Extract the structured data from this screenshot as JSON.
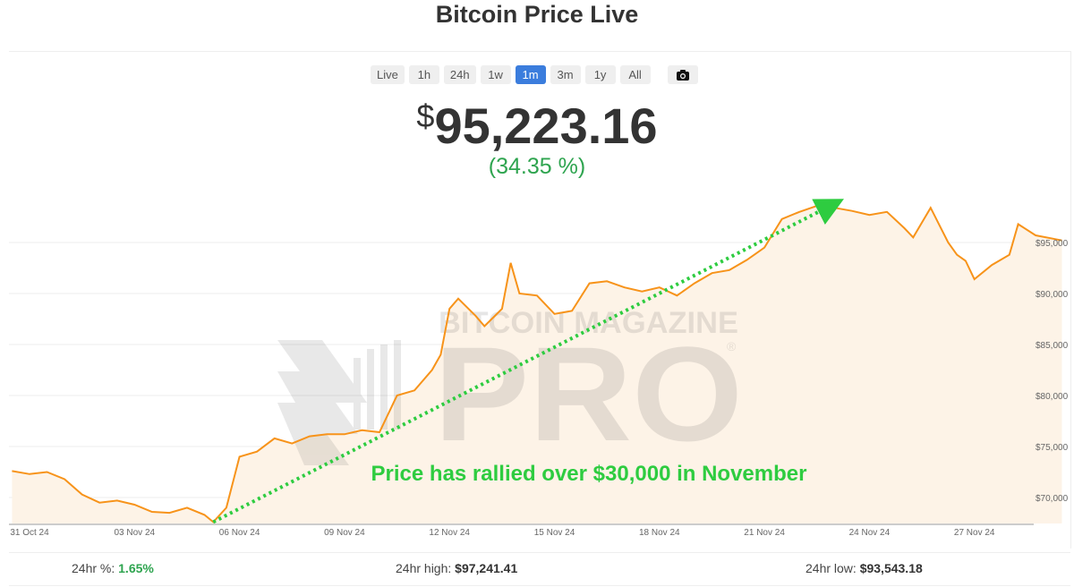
{
  "title": "Bitcoin Price Live",
  "ranges": [
    {
      "label": "Live"
    },
    {
      "label": "1h"
    },
    {
      "label": "24h"
    },
    {
      "label": "1w"
    },
    {
      "label": "1m",
      "active": true
    },
    {
      "label": "3m"
    },
    {
      "label": "1y"
    },
    {
      "label": "All"
    }
  ],
  "camera_icon": "camera-icon",
  "price": {
    "currency": "$",
    "value": "95,223.16",
    "change": "(34.35 %)",
    "change_color": "#2ea44f"
  },
  "stats": {
    "pct_label": "24hr %:",
    "pct_value": "1.65%",
    "high_label": "24hr high:",
    "high_value": "$97,241.41",
    "low_label": "24hr low:",
    "low_value": "$93,543.18"
  },
  "watermark": {
    "line1": "BITCOIN MAGAZINE",
    "line2": "PRO",
    "mark": "®"
  },
  "chart_data": {
    "type": "area",
    "line_color": "#f7931a",
    "fill_color": "#fdf3e7",
    "ylim": [
      67400,
      100000
    ],
    "y_ticks": [
      70000,
      75000,
      80000,
      85000,
      90000,
      95000
    ],
    "y_tick_labels": [
      "$70,000",
      "$75,000",
      "$80,000",
      "$85,000",
      "$90,000",
      "$95,000"
    ],
    "x_tick_dates": [
      "2024-10-31",
      "2024-11-03",
      "2024-11-06",
      "2024-11-09",
      "2024-11-12",
      "2024-11-15",
      "2024-11-18",
      "2024-11-21",
      "2024-11-24",
      "2024-11-27"
    ],
    "x_tick_labels": [
      "31 Oct 24",
      "03 Nov 24",
      "06 Nov 24",
      "09 Nov 24",
      "12 Nov 24",
      "15 Nov 24",
      "18 Nov 24",
      "21 Nov 24",
      "24 Nov 24",
      "27 Nov 24"
    ],
    "grid": true,
    "series": [
      {
        "points": [
          [
            "2024-10-30T12:00",
            72600
          ],
          [
            "2024-10-31T00:00",
            72300
          ],
          [
            "2024-10-31T12:00",
            72500
          ],
          [
            "2024-11-01T00:00",
            71800
          ],
          [
            "2024-11-01T12:00",
            70300
          ],
          [
            "2024-11-02T00:00",
            69500
          ],
          [
            "2024-11-02T12:00",
            69700
          ],
          [
            "2024-11-03T00:00",
            69300
          ],
          [
            "2024-11-03T12:00",
            68600
          ],
          [
            "2024-11-04T00:00",
            68500
          ],
          [
            "2024-11-04T12:00",
            69000
          ],
          [
            "2024-11-05T00:00",
            68300
          ],
          [
            "2024-11-05T06:00",
            67600
          ],
          [
            "2024-11-05T15:00",
            69000
          ],
          [
            "2024-11-06T00:00",
            74000
          ],
          [
            "2024-11-06T12:00",
            74500
          ],
          [
            "2024-11-07T00:00",
            75800
          ],
          [
            "2024-11-07T12:00",
            75300
          ],
          [
            "2024-11-08T00:00",
            76000
          ],
          [
            "2024-11-08T12:00",
            76200
          ],
          [
            "2024-11-09T00:00",
            76200
          ],
          [
            "2024-11-09T12:00",
            76600
          ],
          [
            "2024-11-10T00:00",
            76400
          ],
          [
            "2024-11-10T12:00",
            80000
          ],
          [
            "2024-11-11T00:00",
            80500
          ],
          [
            "2024-11-11T12:00",
            82500
          ],
          [
            "2024-11-11T18:00",
            84000
          ],
          [
            "2024-11-12T00:00",
            88500
          ],
          [
            "2024-11-12T06:00",
            89500
          ],
          [
            "2024-11-12T18:00",
            87800
          ],
          [
            "2024-11-13T00:00",
            86800
          ],
          [
            "2024-11-13T12:00",
            88500
          ],
          [
            "2024-11-13T18:00",
            93000
          ],
          [
            "2024-11-14T00:00",
            90000
          ],
          [
            "2024-11-14T12:00",
            89800
          ],
          [
            "2024-11-15T00:00",
            88000
          ],
          [
            "2024-11-15T12:00",
            88300
          ],
          [
            "2024-11-16T00:00",
            91000
          ],
          [
            "2024-11-16T12:00",
            91200
          ],
          [
            "2024-11-17T00:00",
            90600
          ],
          [
            "2024-11-17T12:00",
            90200
          ],
          [
            "2024-11-18T00:00",
            90600
          ],
          [
            "2024-11-18T12:00",
            89800
          ],
          [
            "2024-11-19T00:00",
            91000
          ],
          [
            "2024-11-19T12:00",
            92000
          ],
          [
            "2024-11-20T00:00",
            92300
          ],
          [
            "2024-11-20T12:00",
            93300
          ],
          [
            "2024-11-21T00:00",
            94500
          ],
          [
            "2024-11-21T12:00",
            97300
          ],
          [
            "2024-11-22T00:00",
            98000
          ],
          [
            "2024-11-22T12:00",
            98600
          ],
          [
            "2024-11-23T00:00",
            98400
          ],
          [
            "2024-11-23T12:00",
            98100
          ],
          [
            "2024-11-24T00:00",
            97700
          ],
          [
            "2024-11-24T12:00",
            98000
          ],
          [
            "2024-11-25T00:00",
            96400
          ],
          [
            "2024-11-25T06:00",
            95500
          ],
          [
            "2024-11-25T18:00",
            98400
          ],
          [
            "2024-11-26T06:00",
            95000
          ],
          [
            "2024-11-26T12:00",
            93800
          ],
          [
            "2024-11-26T18:00",
            93200
          ],
          [
            "2024-11-27T00:00",
            91400
          ],
          [
            "2024-11-27T12:00",
            92800
          ],
          [
            "2024-11-28T00:00",
            93800
          ],
          [
            "2024-11-28T06:00",
            96800
          ],
          [
            "2024-11-28T18:00",
            95700
          ],
          [
            "2024-11-29T12:00",
            95200
          ]
        ]
      }
    ],
    "annotation": {
      "text": "Price has rallied over $30,000 in November",
      "color": "#2ecc40",
      "arrow_from": [
        "2024-11-05T06:00",
        67600
      ],
      "arrow_to": [
        "2024-11-23T00:00",
        98800
      ]
    }
  }
}
